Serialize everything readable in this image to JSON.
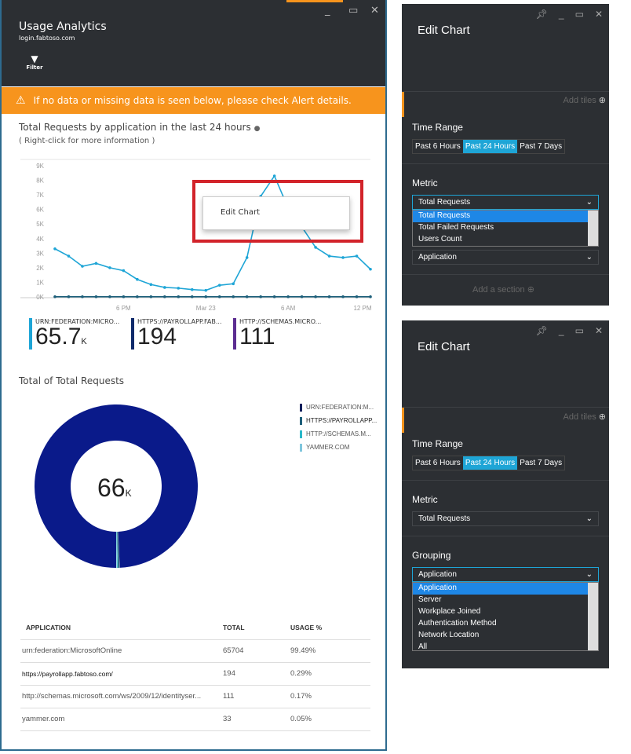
{
  "left": {
    "title": "Usage Analytics",
    "subtitle": "login.fabtoso.com",
    "filter_label": "Filter",
    "alert": "If no data or missing data is seen below, please check Alert details.",
    "line_title": "Total Requests by application in the last 24 hours",
    "line_hint": "( Right-click for more information )",
    "context_menu": "Edit Chart",
    "stats": [
      {
        "label": "URN:FEDERATION:MICRO...",
        "value": "65.7",
        "unit": "K",
        "color": "#1ea5d6"
      },
      {
        "label": "HTTPS://PAYROLLAPP.FAB...",
        "value": "194",
        "unit": "",
        "color": "#0f2a6b"
      },
      {
        "label": "HTTP://SCHEMAS.MICRO...",
        "value": "111",
        "unit": "",
        "color": "#5c2d91"
      }
    ],
    "donut_title": "Total of Total Requests",
    "donut_value": "66",
    "donut_unit": "K",
    "legend": [
      {
        "label": "URN:FEDERATION:M...",
        "color": "#0f1f5c"
      },
      {
        "label": "HTTPS://PAYROLLAPP...",
        "color": "#1d5f7a"
      },
      {
        "label": "HTTP://SCHEMAS.M...",
        "color": "#2bb8c9"
      },
      {
        "label": "YAMMER.COM",
        "color": "#7fc6dd"
      }
    ],
    "table": {
      "headers": [
        "APPLICATION",
        "TOTAL",
        "USAGE %"
      ],
      "rows": [
        [
          "urn:federation:MicrosoftOnline",
          "65704",
          "99.49%"
        ],
        [
          "https://payrollapp.fabtoso.com/",
          "194",
          "0.29%"
        ],
        [
          "http://schemas.microsoft.com/ws/2009/12/identityser...",
          "111",
          "0.17%"
        ],
        [
          "yammer.com",
          "33",
          "0.05%"
        ]
      ]
    }
  },
  "chart_data": [
    {
      "type": "line",
      "title": "Total Requests by application in the last 24 hours",
      "y_ticks": [
        "0K",
        "1K",
        "2K",
        "3K",
        "4K",
        "5K",
        "6K",
        "7K",
        "8K",
        "9K"
      ],
      "ylim": [
        0,
        9000
      ],
      "x_ticks": [
        {
          "label": "6 PM",
          "index": 5
        },
        {
          "label": "Mar 23",
          "index": 11
        },
        {
          "label": "6 AM",
          "index": 17
        },
        {
          "label": "12 PM",
          "index": 23
        }
      ],
      "series": [
        {
          "name": "URN:FEDERATION:MICRO...",
          "color": "#1ea5d6",
          "values": [
            3300,
            2800,
            2100,
            2300,
            2000,
            1800,
            1200,
            850,
            650,
            600,
            500,
            450,
            800,
            900,
            2700,
            6900,
            8300,
            6100,
            4800,
            3400,
            2800,
            2700,
            2800,
            1900
          ]
        },
        {
          "name": "HTTPS://PAYROLLAPP.FAB...",
          "color": "#1d5f7a",
          "values": [
            8,
            8,
            8,
            8,
            8,
            8,
            8,
            8,
            8,
            8,
            8,
            8,
            8,
            8,
            8,
            8,
            8,
            8,
            8,
            8,
            8,
            8,
            8,
            8
          ]
        }
      ]
    },
    {
      "type": "pie",
      "title": "Total of Total Requests",
      "categories": [
        "urn:federation:MicrosoftOnline",
        "https://payrollapp.fabtoso.com/",
        "http://schemas.microsoft.com/ws/2009/12/identityser...",
        "yammer.com"
      ],
      "values": [
        65704,
        194,
        111,
        33
      ],
      "colors": [
        "#0a1a8a",
        "#1d5f7a",
        "#2bb8c9",
        "#7fc6dd"
      ]
    }
  ],
  "panel1": {
    "title": "Edit Chart",
    "add_tiles": "Add tiles",
    "time_label": "Time Range",
    "time_options": [
      "Past 6 Hours",
      "Past 24 Hours",
      "Past 7 Days"
    ],
    "metric_label": "Metric",
    "metric_value": "Total Requests",
    "metric_options": [
      "Total Requests",
      "Total Failed Requests",
      "Users Count"
    ],
    "grouping_value": "Application",
    "add_section": "Add a section"
  },
  "panel2": {
    "title": "Edit Chart",
    "add_tiles": "Add tiles",
    "time_label": "Time Range",
    "time_options": [
      "Past 6 Hours",
      "Past 24 Hours",
      "Past 7 Days"
    ],
    "metric_label": "Metric",
    "metric_value": "Total Requests",
    "grouping_label": "Grouping",
    "grouping_value": "Application",
    "grouping_options": [
      "Application",
      "Server",
      "Workplace Joined",
      "Authentication Method",
      "Network Location",
      "All"
    ]
  }
}
